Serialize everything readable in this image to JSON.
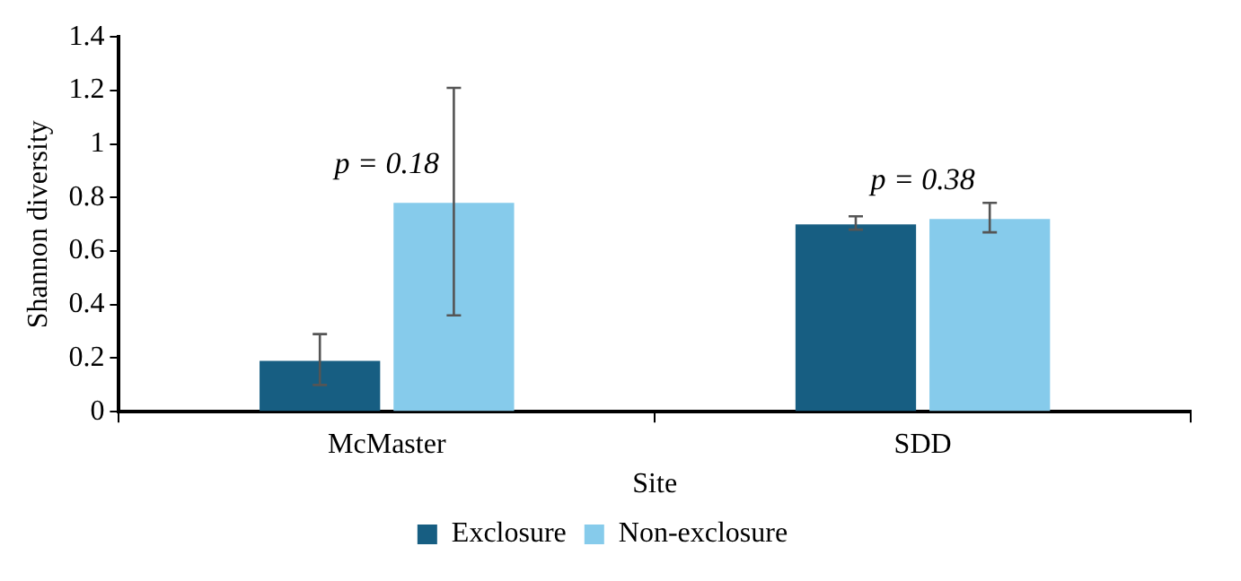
{
  "chart_data": {
    "type": "bar",
    "xlabel": "Site",
    "ylabel": "Shannon diversity",
    "categories": [
      "McMaster",
      "SDD"
    ],
    "series": [
      {
        "name": "Exclosure",
        "color": "#175e82",
        "values": [
          0.19,
          0.7
        ],
        "errors": [
          [
            0.1,
            0.29
          ],
          [
            0.68,
            0.73
          ]
        ]
      },
      {
        "name": "Non-exclosure",
        "color": "#86cbeb",
        "values": [
          0.78,
          0.72
        ],
        "errors": [
          [
            0.36,
            1.21
          ],
          [
            0.67,
            0.78
          ]
        ]
      }
    ],
    "annotations": [
      "p = 0.18",
      "p = 0.38"
    ],
    "ylim": [
      0,
      1.4
    ],
    "yticks": [
      0,
      0.2,
      0.4,
      0.6,
      0.8,
      1,
      1.2,
      1.4
    ],
    "grid": false,
    "legend": "bottom"
  }
}
